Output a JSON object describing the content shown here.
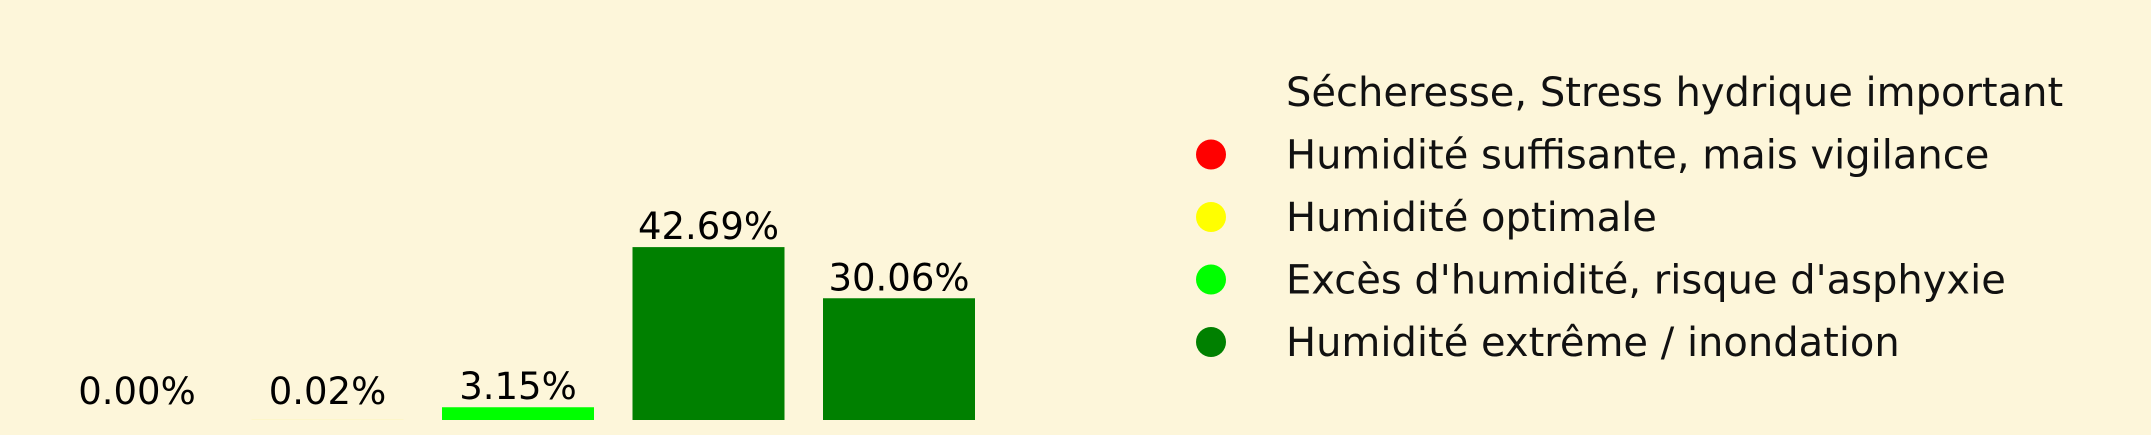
{
  "chart_data": {
    "type": "bar",
    "categories": [
      "Sécheresse, Stress hydrique important",
      "Humidité suffisante, mais vigilance",
      "Humidité optimale",
      "Excès d'humidité, risque d'asphyxie",
      "Humidité extrême / inondation"
    ],
    "values": [
      0.0,
      0.02,
      3.15,
      42.69,
      30.06
    ],
    "value_labels": [
      "0.00%",
      "0.02%",
      "3.15%",
      "42.69%",
      "30.06%"
    ],
    "colors": [
      "#ff0000",
      "#ffff00",
      "#00ff00",
      "#008000",
      "#008000"
    ],
    "legend": {
      "placement": "right",
      "entries": [
        {
          "label": "Sécheresse, Stress hydrique important",
          "color": null
        },
        {
          "label": "Humidité suffisante, mais vigilance",
          "color": "#ff0000"
        },
        {
          "label": "Humidité optimale",
          "color": "#ffff00"
        },
        {
          "label": "Excès d'humidité, risque d'asphyxie",
          "color": "#00ff00"
        },
        {
          "label": "Humidité extrême / inondation",
          "color": "#008000"
        }
      ]
    },
    "background": "#fdf6da",
    "ylim": [
      0,
      60
    ],
    "grid": false,
    "axes_visible": false
  }
}
